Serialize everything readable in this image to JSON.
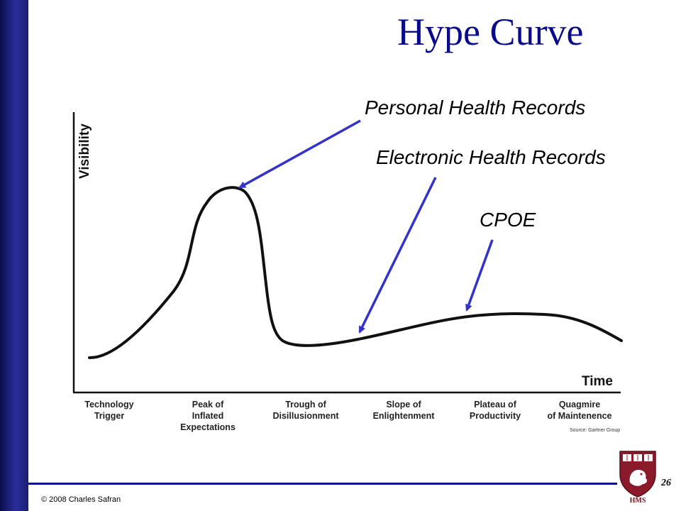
{
  "slide": {
    "title": "Hype Curve",
    "copyright": "© 2008 Charles Safran",
    "page_number": "26",
    "logo_text": "HMS"
  },
  "diagram": {
    "y_axis_label": "Visibility",
    "x_axis_label": "Time",
    "phases": [
      "Technology\nTrigger",
      "Peak of\nInflated\nExpectations",
      "Trough of\nDisillusionment",
      "Slope of\nEnlightenment",
      "Plateau of\nProductivity",
      "Quagmire\nof Maintenence"
    ],
    "source": "Source: Gartner Group",
    "callouts": {
      "phr": "Personal Health Records",
      "ehr": "Electronic  Health Records",
      "cpoe": "CPOE"
    }
  },
  "colors": {
    "title": "#0a0a8c",
    "arrow": "#3333cc",
    "curve": "#111111",
    "side_bar": "#1a1d70",
    "logo": "#8b1a2b"
  }
}
